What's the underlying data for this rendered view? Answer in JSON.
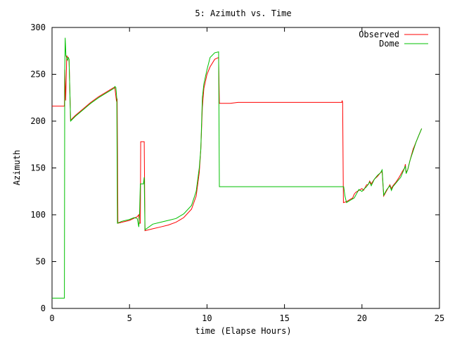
{
  "chart_data": {
    "type": "line",
    "title": "5: Azimuth vs. Time",
    "xlabel": "time (Elapse Hours)",
    "ylabel": "Azimuth",
    "xlim": [
      0,
      25
    ],
    "ylim": [
      0,
      300
    ],
    "xticks": [
      "0",
      "5",
      "10",
      "15",
      "20",
      "25"
    ],
    "yticks": [
      "0",
      "50",
      "100",
      "150",
      "200",
      "250",
      "300"
    ],
    "grid": false,
    "legend_position": "top-right",
    "series": [
      {
        "name": "Observed",
        "color": "#ff0000",
        "points": [
          [
            0,
            216
          ],
          [
            0.8,
            216
          ],
          [
            0.82,
            255
          ],
          [
            0.88,
            222
          ],
          [
            0.95,
            270
          ],
          [
            1.0,
            268
          ],
          [
            1.05,
            268
          ],
          [
            1.1,
            266
          ],
          [
            1.2,
            201
          ],
          [
            1.5,
            206
          ],
          [
            2.0,
            213
          ],
          [
            2.5,
            220
          ],
          [
            3.0,
            226
          ],
          [
            3.5,
            231
          ],
          [
            3.9,
            235
          ],
          [
            4.0,
            236
          ],
          [
            4.05,
            236
          ],
          [
            4.15,
            222
          ],
          [
            4.2,
            224
          ],
          [
            4.25,
            91
          ],
          [
            4.5,
            92
          ],
          [
            5.0,
            94
          ],
          [
            5.5,
            98
          ],
          [
            5.6,
            100
          ],
          [
            5.62,
            91
          ],
          [
            5.7,
            91
          ],
          [
            5.72,
            178
          ],
          [
            5.9,
            178
          ],
          [
            5.95,
            178
          ],
          [
            6.0,
            83
          ],
          [
            6.5,
            85
          ],
          [
            7.0,
            87
          ],
          [
            7.5,
            89
          ],
          [
            8.0,
            92
          ],
          [
            8.5,
            97
          ],
          [
            9.0,
            106
          ],
          [
            9.3,
            120
          ],
          [
            9.5,
            145
          ],
          [
            9.6,
            170
          ],
          [
            9.7,
            215
          ],
          [
            9.8,
            235
          ],
          [
            10.0,
            250
          ],
          [
            10.2,
            258
          ],
          [
            10.5,
            266
          ],
          [
            10.75,
            268
          ],
          [
            10.8,
            219
          ],
          [
            11.5,
            219
          ],
          [
            12.0,
            220
          ],
          [
            15.0,
            220
          ],
          [
            18.7,
            220
          ],
          [
            18.72,
            222
          ],
          [
            18.75,
            220
          ],
          [
            18.8,
            113
          ],
          [
            19.0,
            114
          ],
          [
            19.2,
            116
          ],
          [
            19.4,
            118
          ],
          [
            19.5,
            122
          ],
          [
            19.6,
            124
          ],
          [
            19.8,
            126
          ],
          [
            20.0,
            128
          ],
          [
            20.1,
            126
          ],
          [
            20.3,
            132
          ],
          [
            20.4,
            132
          ],
          [
            20.5,
            136
          ],
          [
            20.6,
            133
          ],
          [
            20.8,
            138
          ],
          [
            21.0,
            141
          ],
          [
            21.2,
            145
          ],
          [
            21.3,
            146
          ],
          [
            21.4,
            120
          ],
          [
            21.6,
            126
          ],
          [
            21.8,
            132
          ],
          [
            21.9,
            128
          ],
          [
            22.0,
            131
          ],
          [
            22.2,
            135
          ],
          [
            22.4,
            140
          ],
          [
            22.6,
            146
          ],
          [
            22.75,
            150
          ],
          [
            22.8,
            154
          ],
          [
            22.85,
            145
          ],
          [
            22.95,
            148
          ],
          [
            23.1,
            158
          ],
          [
            23.3,
            170
          ],
          [
            23.5,
            178
          ],
          [
            23.7,
            186
          ],
          [
            23.85,
            192
          ]
        ]
      },
      {
        "name": "Dome",
        "color": "#00c000",
        "points": [
          [
            0,
            11
          ],
          [
            0.8,
            11
          ],
          [
            0.82,
            255
          ],
          [
            0.85,
            289
          ],
          [
            0.9,
            270
          ],
          [
            1.0,
            265
          ],
          [
            1.05,
            268
          ],
          [
            1.1,
            266
          ],
          [
            1.2,
            200
          ],
          [
            1.5,
            205
          ],
          [
            2.0,
            212
          ],
          [
            2.5,
            219
          ],
          [
            3.0,
            225
          ],
          [
            3.5,
            230
          ],
          [
            4.0,
            235
          ],
          [
            4.05,
            237
          ],
          [
            4.12,
            236
          ],
          [
            4.18,
            224
          ],
          [
            4.22,
            91
          ],
          [
            4.5,
            93
          ],
          [
            5.0,
            95
          ],
          [
            5.3,
            97
          ],
          [
            5.5,
            96
          ],
          [
            5.6,
            87
          ],
          [
            5.65,
            101
          ],
          [
            5.7,
            133
          ],
          [
            5.9,
            133
          ],
          [
            5.95,
            140
          ],
          [
            6.0,
            84
          ],
          [
            6.5,
            90
          ],
          [
            7.0,
            92
          ],
          [
            7.5,
            94
          ],
          [
            8.0,
            96
          ],
          [
            8.5,
            101
          ],
          [
            9.0,
            110
          ],
          [
            9.3,
            125
          ],
          [
            9.5,
            150
          ],
          [
            9.6,
            170
          ],
          [
            9.7,
            225
          ],
          [
            9.8,
            240
          ],
          [
            10.0,
            255
          ],
          [
            10.2,
            268
          ],
          [
            10.5,
            273
          ],
          [
            10.75,
            274
          ],
          [
            10.8,
            130
          ],
          [
            12.0,
            130
          ],
          [
            15.0,
            130
          ],
          [
            18.8,
            130
          ],
          [
            18.82,
            130
          ],
          [
            18.9,
            120
          ],
          [
            19.0,
            113
          ],
          [
            19.2,
            115
          ],
          [
            19.5,
            118
          ],
          [
            19.8,
            127
          ],
          [
            20.0,
            125
          ],
          [
            20.1,
            127
          ],
          [
            20.3,
            130
          ],
          [
            20.5,
            135
          ],
          [
            20.6,
            131
          ],
          [
            20.8,
            138
          ],
          [
            21.0,
            142
          ],
          [
            21.2,
            145
          ],
          [
            21.3,
            148
          ],
          [
            21.4,
            121
          ],
          [
            21.6,
            127
          ],
          [
            21.8,
            131
          ],
          [
            21.9,
            126
          ],
          [
            22.0,
            130
          ],
          [
            22.3,
            136
          ],
          [
            22.5,
            140
          ],
          [
            22.7,
            148
          ],
          [
            22.8,
            152
          ],
          [
            22.85,
            144
          ],
          [
            22.95,
            148
          ],
          [
            23.1,
            158
          ],
          [
            23.3,
            168
          ],
          [
            23.5,
            178
          ],
          [
            23.7,
            186
          ],
          [
            23.85,
            192
          ]
        ]
      }
    ]
  }
}
